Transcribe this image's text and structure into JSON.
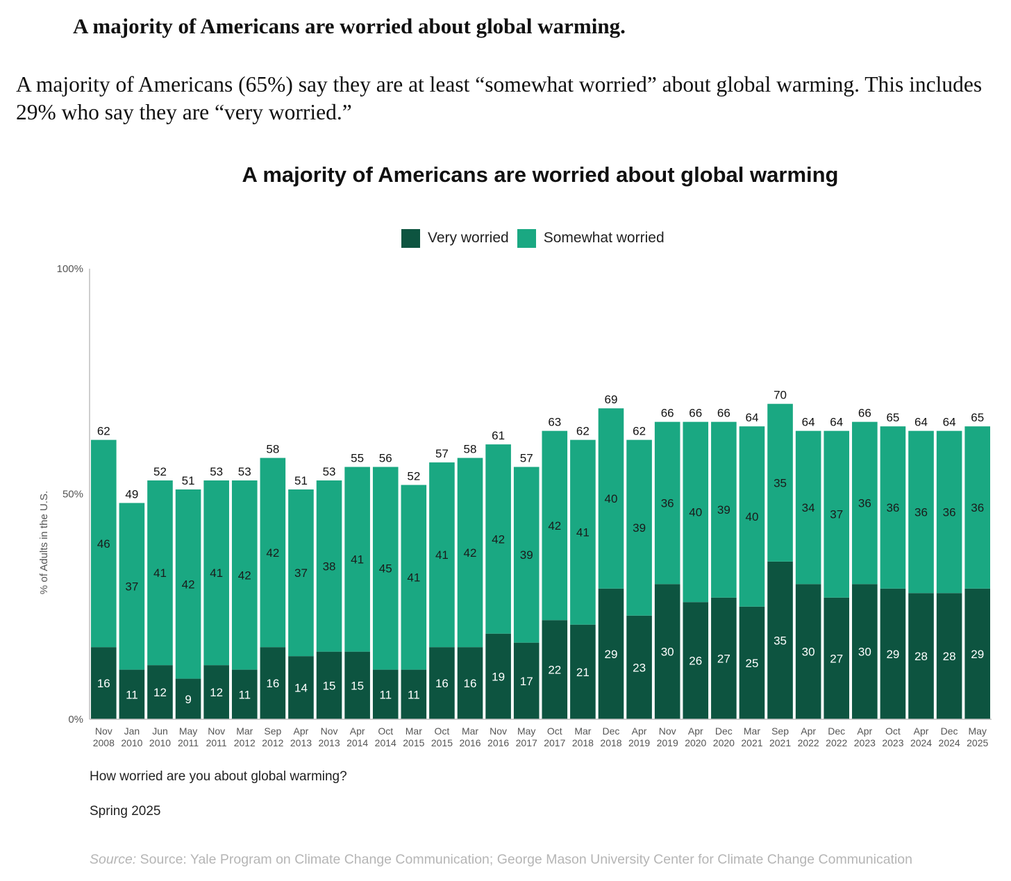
{
  "article": {
    "heading": "A majority of Americans are worried about global warming.",
    "lede": "A majority of Americans (65%) say they are at least “somewhat worried” about global warming. This includes 29% who say they are “very worried.”"
  },
  "caption": {
    "question": "How worried are you about global warming?",
    "date": "Spring 2025",
    "source_label": "Source:",
    "source_text": "Source: Yale Program on Climate Change Communication; George Mason University Center for Climate Change Communication"
  },
  "colors": {
    "very_worried": "#0d5440",
    "somewhat_worried": "#1aa882",
    "axis": "#bdbdbd"
  },
  "chart_data": {
    "type": "bar",
    "stacked": true,
    "title": "A majority of Americans are worried about global warming",
    "ylabel": "% of Adults in the U.S.",
    "ylim": [
      0,
      100
    ],
    "y_ticks": [
      "0%",
      "50%",
      "100%"
    ],
    "y_tick_values": [
      0,
      50,
      100
    ],
    "legend_position": "top-center",
    "categories": [
      [
        "Nov",
        "2008"
      ],
      [
        "Jan",
        "2010"
      ],
      [
        "Jun",
        "2010"
      ],
      [
        "May",
        "2011"
      ],
      [
        "Nov",
        "2011"
      ],
      [
        "Mar",
        "2012"
      ],
      [
        "Sep",
        "2012"
      ],
      [
        "Apr",
        "2013"
      ],
      [
        "Nov",
        "2013"
      ],
      [
        "Apr",
        "2014"
      ],
      [
        "Oct",
        "2014"
      ],
      [
        "Mar",
        "2015"
      ],
      [
        "Oct",
        "2015"
      ],
      [
        "Mar",
        "2016"
      ],
      [
        "Nov",
        "2016"
      ],
      [
        "May",
        "2017"
      ],
      [
        "Oct",
        "2017"
      ],
      [
        "Mar",
        "2018"
      ],
      [
        "Dec",
        "2018"
      ],
      [
        "Apr",
        "2019"
      ],
      [
        "Nov",
        "2019"
      ],
      [
        "Apr",
        "2020"
      ],
      [
        "Dec",
        "2020"
      ],
      [
        "Mar",
        "2021"
      ],
      [
        "Sep",
        "2021"
      ],
      [
        "Apr",
        "2022"
      ],
      [
        "Dec",
        "2022"
      ],
      [
        "Apr",
        "2023"
      ],
      [
        "Oct",
        "2023"
      ],
      [
        "Apr",
        "2024"
      ],
      [
        "Dec",
        "2024"
      ],
      [
        "May",
        "2025"
      ]
    ],
    "series": [
      {
        "name": "Very worried",
        "values": [
          16,
          11,
          12,
          9,
          12,
          11,
          16,
          14,
          15,
          15,
          11,
          11,
          16,
          16,
          19,
          17,
          22,
          21,
          29,
          23,
          30,
          26,
          27,
          25,
          35,
          30,
          27,
          30,
          29,
          28,
          28,
          29
        ]
      },
      {
        "name": "Somewhat worried",
        "values": [
          46,
          37,
          41,
          42,
          41,
          42,
          42,
          37,
          38,
          41,
          45,
          41,
          41,
          42,
          42,
          39,
          42,
          41,
          40,
          39,
          36,
          40,
          39,
          40,
          35,
          34,
          37,
          36,
          36,
          36,
          36,
          36
        ]
      }
    ],
    "totals": [
      62,
      49,
      52,
      51,
      53,
      53,
      58,
      51,
      53,
      55,
      56,
      52,
      57,
      58,
      61,
      57,
      63,
      62,
      69,
      62,
      66,
      66,
      66,
      64,
      70,
      64,
      64,
      66,
      65,
      64,
      64,
      65
    ]
  }
}
